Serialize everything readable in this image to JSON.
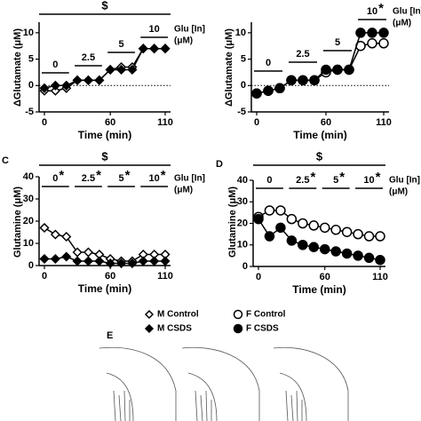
{
  "chart_data": [
    {
      "type": "line",
      "x": [
        0,
        10,
        20,
        30,
        40,
        50,
        60,
        70,
        80,
        90,
        100,
        110
      ],
      "xlim": [
        0,
        110
      ],
      "xticks": [
        0,
        60,
        110
      ],
      "ylim": [
        -5,
        12
      ],
      "yticks": [
        -5,
        0,
        5,
        10
      ],
      "x_label": "Time (min)",
      "y_label": "ΔGlutamate (μM)",
      "significance": "$",
      "dose_labels": [
        "0",
        "2.5",
        "5",
        "10"
      ],
      "dose_starred": [
        false,
        false,
        false,
        false
      ],
      "star_symbol": "*",
      "dose_unit": [
        "Glu [In]",
        "(μM)"
      ],
      "zero_line": true,
      "series": [
        {
          "name": "M Control",
          "marker": "diamond",
          "filled": false,
          "color": "#000000",
          "values": [
            -1,
            -1,
            -0.5,
            1,
            1,
            1,
            3,
            3.5,
            3.5,
            7,
            7,
            7
          ]
        },
        {
          "name": "M CSDS",
          "marker": "diamond",
          "filled": true,
          "color": "#000000",
          "values": [
            -0.5,
            0,
            0,
            1,
            1,
            1,
            3,
            3,
            3,
            7,
            7,
            7
          ]
        }
      ]
    },
    {
      "type": "line",
      "x": [
        0,
        10,
        20,
        30,
        40,
        50,
        60,
        70,
        80,
        90,
        100,
        110
      ],
      "xlim": [
        0,
        110
      ],
      "xticks": [
        0,
        60,
        110
      ],
      "ylim": [
        -5,
        12
      ],
      "yticks": [
        -5,
        0,
        5,
        10
      ],
      "x_label": "Time (min)",
      "y_label": "ΔGlutamate (μM)",
      "dose_labels": [
        "0",
        "2.5",
        "5",
        "10"
      ],
      "dose_starred": [
        false,
        false,
        false,
        true
      ],
      "star_symbol": "*",
      "dose_unit": [
        "Glu [In]",
        "(μM)"
      ],
      "zero_line": true,
      "series": [
        {
          "name": "F Control",
          "marker": "circle",
          "filled": false,
          "color": "#000000",
          "values": [
            -1.5,
            -1,
            -0.5,
            1,
            1,
            1,
            2.5,
            3,
            3,
            7.5,
            8,
            8
          ]
        },
        {
          "name": "F CSDS",
          "marker": "circle",
          "filled": true,
          "color": "#000000",
          "values": [
            -1.5,
            -1,
            -0.5,
            1,
            1,
            1,
            3,
            3,
            3,
            10,
            10,
            10
          ]
        }
      ]
    },
    {
      "type": "line",
      "panel": "C",
      "x": [
        0,
        10,
        20,
        30,
        40,
        50,
        60,
        70,
        80,
        90,
        100,
        110
      ],
      "xlim": [
        0,
        110
      ],
      "xticks": [
        0,
        60,
        110
      ],
      "ylim": [
        0,
        40
      ],
      "yticks": [
        0,
        10,
        20,
        30,
        40
      ],
      "x_label": "Time (min)",
      "y_label": "Glutamine (μM)",
      "significance": "$",
      "dose_labels": [
        "0",
        "2.5",
        "5",
        "10"
      ],
      "dose_starred": [
        true,
        true,
        true,
        true
      ],
      "star_symbol": "*",
      "dose_unit": [
        "Glu [In]",
        "(μM)"
      ],
      "zero_line": false,
      "series": [
        {
          "name": "M Control",
          "marker": "diamond",
          "filled": false,
          "color": "#000000",
          "values": [
            17,
            14,
            13,
            6,
            6,
            5,
            3,
            2,
            2,
            5,
            5,
            5
          ]
        },
        {
          "name": "M CSDS",
          "marker": "diamond",
          "filled": true,
          "color": "#000000",
          "values": [
            3,
            3,
            4,
            2,
            2,
            2,
            1,
            1,
            1,
            2,
            2,
            2
          ]
        }
      ]
    },
    {
      "type": "line",
      "panel": "D",
      "x": [
        0,
        10,
        20,
        30,
        40,
        50,
        60,
        70,
        80,
        90,
        100,
        110
      ],
      "xlim": [
        0,
        110
      ],
      "xticks": [
        0,
        60,
        110
      ],
      "ylim": [
        0,
        40
      ],
      "yticks": [
        0,
        10,
        20,
        30,
        40
      ],
      "x_label": "Time (min)",
      "y_label": "Glutamine (μM)",
      "significance": "$",
      "dose_labels": [
        "0",
        "2.5",
        "5",
        "10"
      ],
      "dose_starred": [
        false,
        true,
        true,
        true
      ],
      "star_symbol": "*",
      "dose_unit": [
        "Glu [In]",
        "(μM)"
      ],
      "zero_line": false,
      "series": [
        {
          "name": "F Control",
          "marker": "circle",
          "filled": false,
          "color": "#000000",
          "values": [
            23,
            26,
            26,
            22,
            20,
            19,
            18,
            17,
            16,
            15,
            14,
            14
          ]
        },
        {
          "name": "F CSDS",
          "marker": "circle",
          "filled": true,
          "color": "#000000",
          "values": [
            22,
            14,
            18,
            12,
            10,
            9,
            8,
            7,
            6,
            5,
            4,
            3
          ]
        }
      ]
    }
  ],
  "panel_e": {
    "label": "E"
  }
}
